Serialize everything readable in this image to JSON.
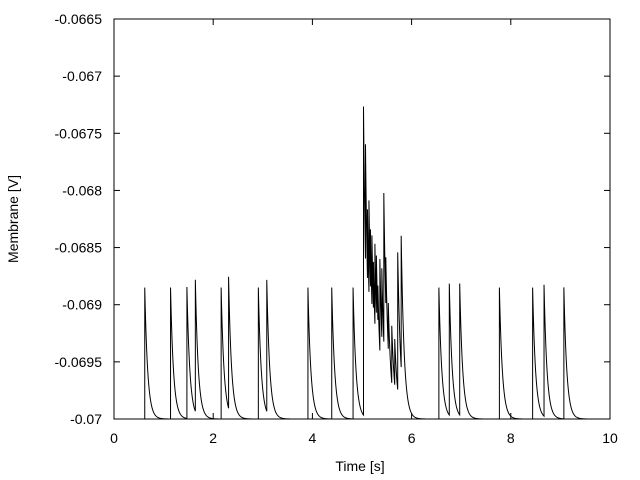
{
  "chart_data": {
    "type": "line",
    "title": "",
    "xlabel": "Time [s]",
    "ylabel": "Membrane [V]",
    "xlim": [
      0,
      10
    ],
    "ylim": [
      -0.07,
      -0.0665
    ],
    "xticks": [
      0,
      2,
      4,
      6,
      8,
      10
    ],
    "xtick_labels": [
      "0",
      "2",
      "4",
      "6",
      "8",
      "10"
    ],
    "yticks": [
      -0.07,
      -0.0695,
      -0.069,
      -0.0685,
      -0.068,
      -0.0675,
      -0.067,
      -0.0665
    ],
    "ytick_labels": [
      "-0.07",
      "-0.0695",
      "-0.069",
      "-0.0685",
      "-0.068",
      "-0.0675",
      "-0.067",
      "-0.0665"
    ],
    "grid": false,
    "line_color": "#000000",
    "resting_potential": -0.07,
    "decay_time_constant_s": 0.06,
    "event_times": [
      0.62,
      1.14,
      1.47,
      1.64,
      2.16,
      2.31,
      2.91,
      3.08,
      3.91,
      4.39,
      4.82,
      5.03,
      5.07,
      5.11,
      5.14,
      5.17,
      5.2,
      5.23,
      5.26,
      5.29,
      5.32,
      5.36,
      5.4,
      5.44,
      5.48,
      5.53,
      5.6,
      5.66,
      5.72,
      5.79,
      6.55,
      6.76,
      6.97,
      7.77,
      8.44,
      8.67,
      9.07
    ],
    "event_amplitudes": [
      0.00115,
      0.00115,
      0.00115,
      0.00115,
      0.00115,
      0.00115,
      0.00115,
      0.00115,
      0.00115,
      0.00115,
      0.00115,
      0.0027,
      0.001,
      0.0006,
      0.0008,
      0.0005,
      0.0006,
      0.0004,
      0.0007,
      0.0005,
      0.0003,
      0.0008,
      0.0006,
      0.0013,
      0.0004,
      0.0004,
      0.0005,
      0.0004,
      0.0012,
      0.00115,
      0.00115,
      0.00115,
      0.00115,
      0.00115,
      0.00115,
      0.00115,
      0.00115
    ]
  }
}
